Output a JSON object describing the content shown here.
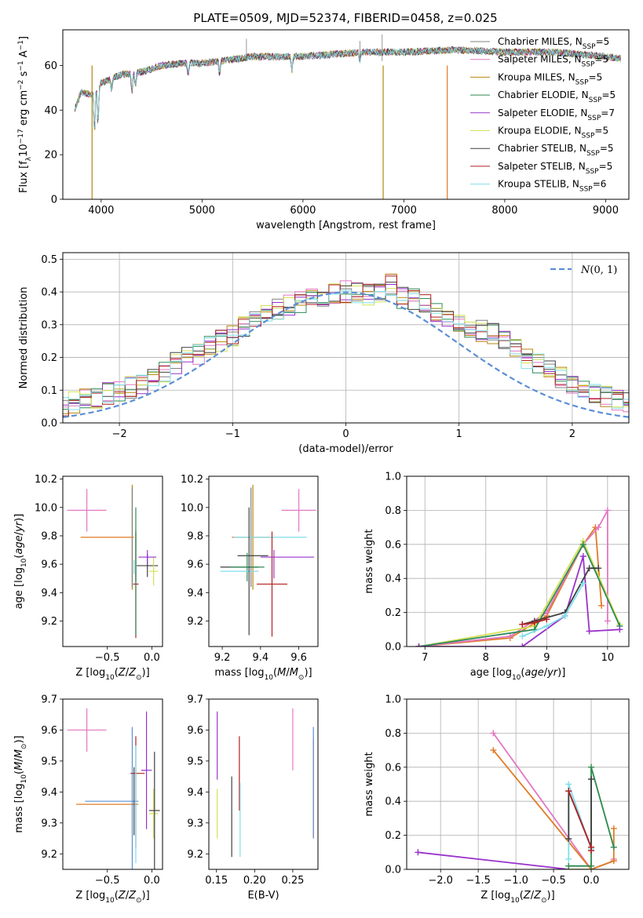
{
  "title": "PLATE=0509, MJD=52374, FIBERID=0458, z=0.025",
  "colors": {
    "chabrier_miles": "#808080",
    "salpeter_miles": "#e377c2",
    "kroupa_miles": "#b8860b",
    "chabrier_elodie": "#2e8b57",
    "salpeter_elodie": "#9932cc",
    "kroupa_elodie": "#d4e157",
    "chabrier_stelib": "#404040",
    "salpeter_stelib": "#b22222",
    "kroupa_stelib": "#80deea",
    "orange": "#e07b24",
    "gaussian": "#5a8fd6"
  },
  "legend_models": [
    {
      "pre": "Chabrier MILES, N",
      "sub": "SSP",
      "post": "=5",
      "color": "#808080"
    },
    {
      "pre": "Salpeter MILES, N",
      "sub": "SSP",
      "post": "=5",
      "color": "#e377c2"
    },
    {
      "pre": "Kroupa MILES, N",
      "sub": "SSP",
      "post": "=5",
      "color": "#b8860b"
    },
    {
      "pre": "Chabrier ELODIE, N",
      "sub": "SSP",
      "post": "=5",
      "color": "#2e8b57"
    },
    {
      "pre": "Salpeter ELODIE, N",
      "sub": "SSP",
      "post": "=7",
      "color": "#9932cc"
    },
    {
      "pre": "Kroupa ELODIE, N",
      "sub": "SSP",
      "post": "=5",
      "color": "#d4e157"
    },
    {
      "pre": "Chabrier STELIB, N",
      "sub": "SSP",
      "post": "=5",
      "color": "#404040"
    },
    {
      "pre": "Salpeter STELIB, N",
      "sub": "SSP",
      "post": "=5",
      "color": "#b22222"
    },
    {
      "pre": "Kroupa STELIB, N",
      "sub": "SSP",
      "post": "=6",
      "color": "#80deea"
    }
  ],
  "chart_data": [
    {
      "id": "spectrum",
      "type": "line",
      "title": "PLATE=0509, MJD=52374, FIBERID=0458, z=0.025",
      "xlabel": "wavelength [Angstrom, rest frame]",
      "ylabel": "Flux [f_λ 10^-17 erg cm^-2 s^-1 A^-1]",
      "xlim": [
        3620,
        9230
      ],
      "ylim": [
        0,
        76
      ],
      "xticks": [
        4000,
        5000,
        6000,
        7000,
        8000,
        9000
      ],
      "yticks": [
        0,
        20,
        40,
        60
      ],
      "continuum": [
        [
          3720,
          38
        ],
        [
          3800,
          48
        ],
        [
          3900,
          47
        ],
        [
          4000,
          52
        ],
        [
          4200,
          56
        ],
        [
          4400,
          57
        ],
        [
          4600,
          60
        ],
        [
          4800,
          61
        ],
        [
          5000,
          61
        ],
        [
          5200,
          62
        ],
        [
          5500,
          64
        ],
        [
          6000,
          64
        ],
        [
          6300,
          65
        ],
        [
          6600,
          66
        ],
        [
          7000,
          66
        ],
        [
          7500,
          67
        ],
        [
          8000,
          66
        ],
        [
          8500,
          66
        ],
        [
          9000,
          64
        ],
        [
          9150,
          63
        ]
      ],
      "absorption_lines": [
        [
          3934,
          20
        ],
        [
          3969,
          18
        ],
        [
          4102,
          6
        ],
        [
          4305,
          8
        ],
        [
          4341,
          6
        ],
        [
          4861,
          5
        ],
        [
          5175,
          6
        ],
        [
          5890,
          7
        ],
        [
          6563,
          4
        ]
      ]
    },
    {
      "id": "residuals",
      "type": "step",
      "xlabel": "(data-model)/error",
      "ylabel": "Normed distribution",
      "xlim": [
        -2.5,
        2.5
      ],
      "ylim": [
        0,
        0.52
      ],
      "xticks": [
        -2,
        -1,
        0,
        1,
        2
      ],
      "yticks": [
        0.0,
        0.1,
        0.2,
        0.3,
        0.4,
        0.5
      ],
      "bin_width": 0.1,
      "reference_label": "N(0,1)",
      "sample_histogram": [
        0.03,
        0.04,
        0.04,
        0.05,
        0.05,
        0.06,
        0.07,
        0.07,
        0.09,
        0.1,
        0.11,
        0.12,
        0.14,
        0.16,
        0.18,
        0.2,
        0.21,
        0.23,
        0.25,
        0.27,
        0.29,
        0.31,
        0.33,
        0.35,
        0.36,
        0.37,
        0.38,
        0.39,
        0.4,
        0.4,
        0.4,
        0.39,
        0.4,
        0.42,
        0.38,
        0.38,
        0.36,
        0.34,
        0.33,
        0.31,
        0.29,
        0.28,
        0.27,
        0.25,
        0.22,
        0.2,
        0.18,
        0.16,
        0.14,
        0.12,
        0.1,
        0.09,
        0.08,
        0.07,
        0.06,
        0.05,
        0.04,
        0.04,
        0.03
      ]
    },
    {
      "id": "age_vs_Z",
      "type": "errorbar",
      "xlabel": "Z [log10(Z/Z☉)]",
      "ylabel": "age [log10(age/yr)]",
      "xlim": [
        -1.0,
        0.12
      ],
      "ylim": [
        9.02,
        10.22
      ],
      "xticks": [
        -0.5,
        0.0
      ],
      "yticks": [
        9.2,
        9.4,
        9.6,
        9.8,
        10.0,
        10.2
      ],
      "points": [
        {
          "x": -0.73,
          "xerr": 0.22,
          "y": 9.98,
          "yerr": 0.15,
          "c": "salpeter_miles"
        },
        {
          "x": -0.22,
          "xerr": 0.0,
          "y": 9.79,
          "yerr": 0.37,
          "c": "kroupa_miles"
        },
        {
          "x": -0.22,
          "xerr": 0.0,
          "y": 9.79,
          "yerr": 0.35,
          "c": "chabrier_miles"
        },
        {
          "x": -0.5,
          "xerr": 0.3,
          "y": 9.79,
          "yerr": 0.0,
          "c": "orange"
        },
        {
          "x": -0.18,
          "xerr": 0.0,
          "y": 9.65,
          "yerr": 0.17,
          "c": "chabrier_stelib"
        },
        {
          "x": -0.05,
          "xerr": 0.12,
          "y": 9.59,
          "yerr": 0.08,
          "c": "chabrier_stelib"
        },
        {
          "x": 0.02,
          "xerr": 0.05,
          "y": 9.55,
          "yerr": 0.1,
          "c": "kroupa_elodie"
        },
        {
          "x": -0.05,
          "xerr": 0.1,
          "y": 9.65,
          "yerr": 0.05,
          "c": "salpeter_elodie"
        },
        {
          "x": -0.18,
          "xerr": 0.03,
          "y": 9.46,
          "yerr": 0.38,
          "c": "salpeter_stelib"
        },
        {
          "x": -0.18,
          "xerr": 0.0,
          "y": 9.55,
          "yerr": 0.45,
          "c": "chabrier_elodie"
        },
        {
          "x": -0.2,
          "xerr": 0.0,
          "y": 9.58,
          "yerr": 0.05,
          "c": "kroupa_stelib"
        }
      ]
    },
    {
      "id": "age_vs_mass",
      "type": "errorbar",
      "xlabel": "mass [log10(M/M☉)]",
      "ylabel": "",
      "xlim": [
        9.13,
        9.7
      ],
      "ylim": [
        9.02,
        10.22
      ],
      "xticks": [
        9.2,
        9.4,
        9.6
      ],
      "yticks": [
        9.2,
        9.4,
        9.6,
        9.8,
        10.0,
        10.2
      ],
      "points": [
        {
          "x": 9.6,
          "xerr": 0.09,
          "y": 9.98,
          "yerr": 0.15,
          "c": "salpeter_miles"
        },
        {
          "x": 9.36,
          "xerr": 0.0,
          "y": 9.79,
          "yerr": 0.37,
          "c": "kroupa_miles"
        },
        {
          "x": 9.35,
          "xerr": 0.0,
          "y": 9.79,
          "yerr": 0.35,
          "c": "chabrier_miles"
        },
        {
          "x": 9.35,
          "xerr": 0.1,
          "y": 9.79,
          "yerr": 0.0,
          "c": "orange"
        },
        {
          "x": 9.45,
          "xerr": 0.19,
          "y": 9.79,
          "yerr": 0.0,
          "c": "kroupa_stelib"
        },
        {
          "x": 9.36,
          "xerr": 0.08,
          "y": 9.66,
          "yerr": 0.0,
          "c": "chabrier_stelib"
        },
        {
          "x": 9.29,
          "xerr": 0.1,
          "y": 9.58,
          "yerr": 0.0,
          "c": "chabrier_stelib"
        },
        {
          "x": 9.33,
          "xerr": 0.09,
          "y": 9.58,
          "yerr": 0.1,
          "c": "chabrier_elodie"
        },
        {
          "x": 9.54,
          "xerr": 0.14,
          "y": 9.65,
          "yerr": 0.0,
          "c": "salpeter_elodie"
        },
        {
          "x": 9.47,
          "xerr": 0.0,
          "y": 9.6,
          "yerr": 0.1,
          "c": "salpeter_elodie"
        },
        {
          "x": 9.46,
          "xerr": 0.08,
          "y": 9.46,
          "yerr": 0.37,
          "c": "salpeter_stelib"
        },
        {
          "x": 9.29,
          "xerr": 0.1,
          "y": 9.55,
          "yerr": 0.0,
          "c": "kroupa_stelib"
        },
        {
          "x": 9.34,
          "xerr": 0.0,
          "y": 9.55,
          "yerr": 0.45,
          "c": "chabrier_stelib"
        }
      ]
    },
    {
      "id": "weight_vs_age",
      "type": "line",
      "xlabel": "age [log10(age/yr)]",
      "ylabel": "mass weight",
      "xlim": [
        6.7,
        10.35
      ],
      "ylim": [
        0,
        1.0
      ],
      "xticks": [
        7,
        8,
        9,
        10
      ],
      "yticks": [
        0.0,
        0.2,
        0.4,
        0.6,
        0.8,
        1.0
      ],
      "series": [
        {
          "c": "orange",
          "x": [
            6.9,
            8.4,
            9.0,
            9.6,
            9.8,
            9.9
          ],
          "y": [
            0.0,
            0.05,
            0.18,
            0.6,
            0.7,
            0.24
          ]
        },
        {
          "c": "salpeter_miles",
          "x": [
            6.9,
            8.4,
            9.0,
            9.6,
            9.85,
            10.0,
            10.0
          ],
          "y": [
            0.0,
            0.06,
            0.2,
            0.6,
            0.7,
            0.8,
            0.15
          ]
        },
        {
          "c": "kroupa_elodie",
          "x": [
            6.9,
            8.8,
            9.6,
            10.2
          ],
          "y": [
            0.0,
            0.12,
            0.62,
            0.13
          ]
        },
        {
          "c": "chabrier_elodie",
          "x": [
            6.9,
            8.8,
            9.6,
            10.2
          ],
          "y": [
            0.0,
            0.1,
            0.6,
            0.12
          ]
        },
        {
          "c": "salpeter_elodie",
          "x": [
            6.9,
            8.6,
            9.3,
            9.6,
            9.7,
            10.2
          ],
          "y": [
            0.0,
            0.0,
            0.18,
            0.53,
            0.09,
            0.1
          ]
        },
        {
          "c": "chabrier_stelib",
          "x": [
            8.6,
            8.8,
            9.3,
            9.7,
            9.85
          ],
          "y": [
            0.13,
            0.15,
            0.2,
            0.46,
            0.46
          ]
        },
        {
          "c": "salpeter_stelib",
          "x": [
            8.6,
            8.8,
            9.0
          ],
          "y": [
            0.13,
            0.14,
            0.16
          ]
        },
        {
          "c": "kroupa_stelib",
          "x": [
            8.6,
            9.0,
            9.3,
            9.6
          ],
          "y": [
            0.06,
            0.12,
            0.18,
            0.37
          ]
        }
      ]
    },
    {
      "id": "mass_vs_Z",
      "type": "errorbar",
      "xlabel": "Z [log10(Z/Z☉)]",
      "ylabel": "mass [log10(M/M☉)]",
      "xlim": [
        -1.0,
        0.12
      ],
      "ylim": [
        9.15,
        9.7
      ],
      "xticks": [
        -0.5,
        0.0
      ],
      "yticks": [
        9.2,
        9.3,
        9.4,
        9.5,
        9.6,
        9.7
      ],
      "points": [
        {
          "x": -0.73,
          "xerr": 0.22,
          "y": 9.6,
          "yerr": 0.07,
          "c": "salpeter_miles"
        },
        {
          "x": -0.5,
          "xerr": 0.35,
          "y": 9.36,
          "yerr": 0.0,
          "c": "orange"
        },
        {
          "x": -0.45,
          "xerr": 0.3,
          "y": 9.37,
          "yerr": 0.0,
          "c": "gaussian"
        },
        {
          "x": -0.22,
          "xerr": 0.0,
          "y": 9.38,
          "yerr": 0.23,
          "c": "gaussian"
        },
        {
          "x": -0.18,
          "xerr": 0.0,
          "y": 9.4,
          "yerr": 0.18,
          "c": "salpeter_stelib"
        },
        {
          "x": -0.16,
          "xerr": 0.08,
          "y": 9.46,
          "yerr": 0.0,
          "c": "salpeter_stelib"
        },
        {
          "x": -0.06,
          "xerr": 0.06,
          "y": 9.47,
          "yerr": 0.19,
          "c": "salpeter_elodie"
        },
        {
          "x": 0.02,
          "xerr": 0.05,
          "y": 9.33,
          "yerr": 0.08,
          "c": "kroupa_elodie"
        },
        {
          "x": 0.03,
          "xerr": 0.06,
          "y": 9.34,
          "yerr": 0.19,
          "c": "chabrier_stelib"
        },
        {
          "x": -0.18,
          "xerr": 0.0,
          "y": 9.36,
          "yerr": 0.19,
          "c": "kroupa_stelib"
        },
        {
          "x": -0.2,
          "xerr": 0.0,
          "y": 9.37,
          "yerr": 0.11,
          "c": "chabrier_stelib"
        }
      ]
    },
    {
      "id": "mass_vs_ebv",
      "type": "errorbar",
      "xlabel": "E(B-V)",
      "ylabel": "",
      "xlim": [
        0.14,
        0.283
      ],
      "ylim": [
        9.15,
        9.7
      ],
      "xticks": [
        0.15,
        0.2,
        0.25
      ],
      "yticks": [
        9.2,
        9.3,
        9.4,
        9.5,
        9.6,
        9.7
      ],
      "points": [
        {
          "x": 0.151,
          "xerr": 0.0,
          "y": 9.55,
          "yerr": 0.11,
          "c": "salpeter_elodie"
        },
        {
          "x": 0.151,
          "xerr": 0.0,
          "y": 9.33,
          "yerr": 0.08,
          "c": "kroupa_elodie"
        },
        {
          "x": 0.17,
          "xerr": 0.0,
          "y": 9.32,
          "yerr": 0.13,
          "c": "chabrier_stelib"
        },
        {
          "x": 0.18,
          "xerr": 0.0,
          "y": 9.46,
          "yerr": 0.12,
          "c": "salpeter_stelib"
        },
        {
          "x": 0.181,
          "xerr": 0.0,
          "y": 9.31,
          "yerr": 0.12,
          "c": "kroupa_stelib"
        },
        {
          "x": 0.25,
          "xerr": 0.0,
          "y": 9.57,
          "yerr": 0.1,
          "c": "salpeter_miles"
        },
        {
          "x": 0.277,
          "xerr": 0.0,
          "y": 9.41,
          "yerr": 0.16,
          "c": "orange"
        },
        {
          "x": 0.277,
          "xerr": 0.0,
          "y": 9.43,
          "yerr": 0.18,
          "c": "gaussian"
        }
      ]
    },
    {
      "id": "weight_vs_Z",
      "type": "line",
      "xlabel": "Z [log10(Z/Z☉)]",
      "ylabel": "mass weight",
      "xlim": [
        -2.45,
        0.5
      ],
      "ylim": [
        0,
        1.0
      ],
      "xticks": [
        -2.0,
        -1.5,
        -1.0,
        -0.5,
        0.0
      ],
      "yticks": [
        0.0,
        0.2,
        0.4,
        0.6,
        0.8,
        1.0
      ],
      "series": [
        {
          "c": "salpeter_miles",
          "x": [
            -1.3,
            0.0,
            0.3,
            0.3
          ],
          "y": [
            0.8,
            0.0,
            0.05,
            0.06
          ]
        },
        {
          "c": "orange",
          "x": [
            -1.3,
            0.0,
            0.3,
            0.3
          ],
          "y": [
            0.7,
            0.0,
            0.05,
            0.24
          ]
        },
        {
          "c": "salpeter_elodie",
          "x": [
            -2.3,
            -0.3,
            0.0
          ],
          "y": [
            0.1,
            0.0,
            0.0
          ]
        },
        {
          "c": "kroupa_elodie",
          "x": [
            -0.3,
            0.0,
            0.0,
            0.3
          ],
          "y": [
            0.0,
            0.0,
            0.6,
            0.13
          ]
        },
        {
          "c": "chabrier_elodie",
          "x": [
            -0.3,
            0.0,
            0.0,
            0.3
          ],
          "y": [
            0.02,
            0.02,
            0.6,
            0.13
          ]
        },
        {
          "c": "kroupa_stelib",
          "x": [
            -0.3,
            -0.3,
            0.0
          ],
          "y": [
            0.06,
            0.5,
            0.12
          ]
        },
        {
          "c": "chabrier_stelib",
          "x": [
            -0.3,
            -0.3,
            0.0,
            0.0
          ],
          "y": [
            0.18,
            0.46,
            0.13,
            0.53
          ]
        },
        {
          "c": "salpeter_stelib",
          "x": [
            -0.3,
            0.0,
            0.0
          ],
          "y": [
            0.46,
            0.13,
            0.11
          ]
        }
      ]
    }
  ]
}
